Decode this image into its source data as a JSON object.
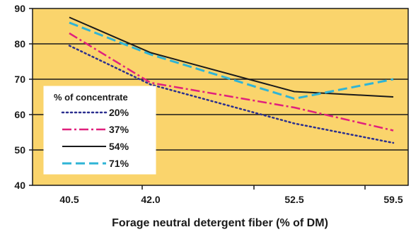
{
  "chart_data": {
    "type": "line",
    "categories": [
      "40.5",
      "42.0",
      "52.5",
      "59.5"
    ],
    "xlabel": "Forage neutral detergent fiber (% of DM)",
    "ylabel": "",
    "ylim": [
      40,
      90
    ],
    "yticks": [
      "40",
      "50",
      "60",
      "70",
      "80",
      "90"
    ],
    "grid": true,
    "plot_background": "#fad46c",
    "legend": {
      "title": "% of concentrate",
      "placement": "bottom-left"
    },
    "series": [
      {
        "name": "20%",
        "color": "#2b2f8f",
        "dash": "dotted",
        "values": [
          79.5,
          68.5,
          57.5,
          52
        ]
      },
      {
        "name": "37%",
        "color": "#e0207d",
        "dash": "dash-dot",
        "values": [
          83,
          69,
          62,
          55.5
        ]
      },
      {
        "name": "54%",
        "color": "#1a1a1a",
        "dash": "solid",
        "values": [
          87.5,
          77.5,
          66.5,
          65
        ]
      },
      {
        "name": "71%",
        "color": "#2fb4d6",
        "dash": "dashed",
        "values": [
          86,
          77,
          64.5,
          70
        ]
      }
    ]
  }
}
